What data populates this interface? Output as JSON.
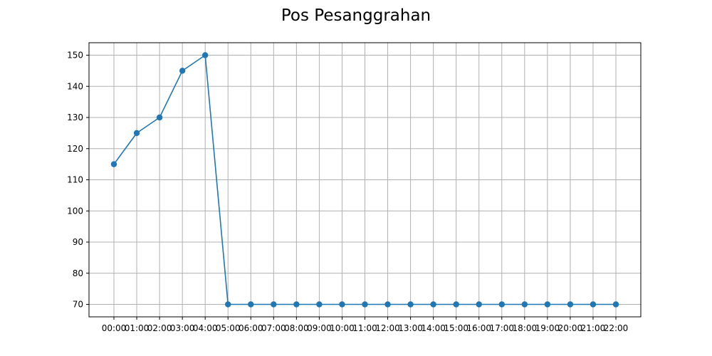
{
  "chart_data": {
    "type": "line",
    "title": "Pos Pesanggrahan",
    "xlabel": "",
    "ylabel": "",
    "categories": [
      "00:00",
      "01:00",
      "02:00",
      "03:00",
      "04:00",
      "05:00",
      "06:00",
      "07:00",
      "08:00",
      "09:00",
      "10:00",
      "11:00",
      "12:00",
      "13:00",
      "14:00",
      "15:00",
      "16:00",
      "17:00",
      "18:00",
      "19:00",
      "20:00",
      "21:00",
      "22:00"
    ],
    "series": [
      {
        "values": [
          115,
          125,
          130,
          145,
          150,
          70,
          70,
          70,
          70,
          70,
          70,
          70,
          70,
          70,
          70,
          70,
          70,
          70,
          70,
          70,
          70,
          70,
          70
        ]
      }
    ],
    "ylim": [
      66,
      154
    ],
    "yticks": [
      70,
      80,
      90,
      100,
      110,
      120,
      130,
      140,
      150
    ],
    "grid": true,
    "markers": true,
    "legend": "none",
    "line_color": "#1f77b4",
    "grid_color": "#b0b0b0"
  }
}
